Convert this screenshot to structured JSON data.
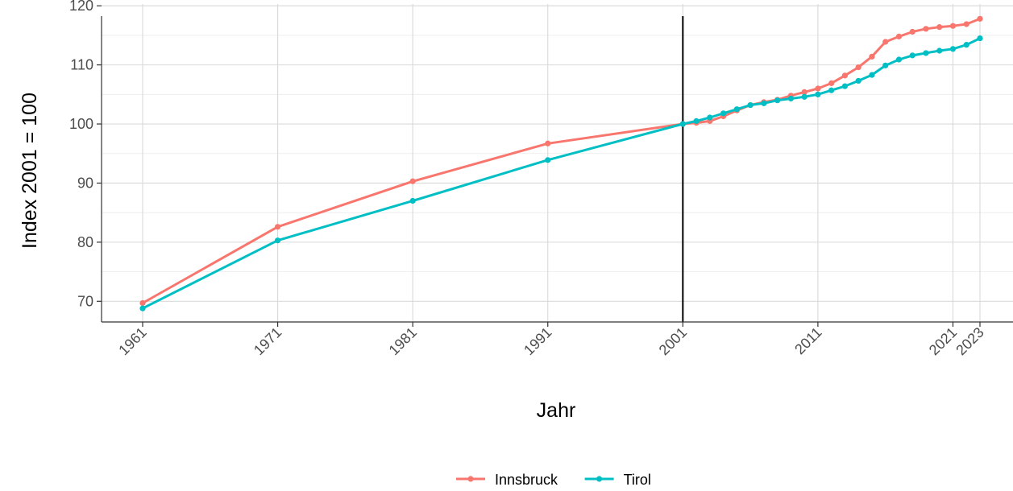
{
  "chart_data": {
    "type": "line",
    "xlabel": "Jahr",
    "ylabel": "Index 2001 = 100",
    "xlim": [
      1958,
      1960
    ],
    "ylim": [
      66.5,
      120.3
    ],
    "x_ticks": [
      1961,
      1971,
      1981,
      1991,
      2001,
      2011,
      2021,
      2023
    ],
    "y_ticks": [
      70,
      80,
      90,
      100,
      110,
      120
    ],
    "reference_line_x": 2001,
    "grid": true,
    "legend_position": "bottom",
    "series": [
      {
        "name": "Innsbruck",
        "color": "#F8766D",
        "x": [
          1961,
          1971,
          1981,
          1991,
          2001,
          2002,
          2003,
          2004,
          2005,
          2006,
          2007,
          2008,
          2009,
          2010,
          2011,
          2012,
          2013,
          2014,
          2015,
          2016,
          2017,
          2018,
          2019,
          2020,
          2021,
          2022,
          2023
        ],
        "values": [
          69.7,
          82.6,
          90.3,
          96.7,
          100.0,
          100.2,
          100.5,
          101.3,
          102.3,
          103.2,
          103.7,
          104.1,
          104.8,
          105.4,
          106.0,
          106.9,
          108.2,
          109.6,
          111.4,
          113.9,
          114.8,
          115.6,
          116.1,
          116.4,
          116.6,
          116.9,
          117.8
        ]
      },
      {
        "name": "Tirol",
        "color": "#00BFC4",
        "x": [
          1961,
          1971,
          1981,
          1991,
          2001,
          2002,
          2003,
          2004,
          2005,
          2006,
          2007,
          2008,
          2009,
          2010,
          2011,
          2012,
          2013,
          2014,
          2015,
          2016,
          2017,
          2018,
          2019,
          2020,
          2021,
          2022,
          2023
        ],
        "values": [
          68.8,
          80.3,
          87.0,
          93.9,
          100.0,
          100.5,
          101.1,
          101.8,
          102.5,
          103.2,
          103.5,
          104.0,
          104.3,
          104.6,
          105.0,
          105.7,
          106.4,
          107.3,
          108.3,
          109.9,
          110.9,
          111.6,
          112.0,
          112.4,
          112.7,
          113.4,
          114.5
        ]
      }
    ]
  }
}
